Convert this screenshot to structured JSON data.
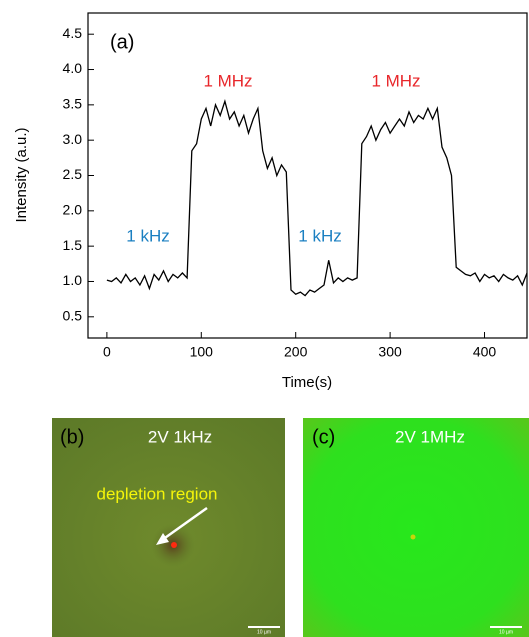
{
  "chart_data": {
    "type": "line",
    "y_label": "Intensity (a.u.)",
    "x_label": "Time(s)",
    "x": [
      0,
      5,
      10,
      15,
      20,
      25,
      30,
      35,
      40,
      45,
      50,
      55,
      60,
      65,
      70,
      75,
      80,
      85,
      90,
      95,
      100,
      105,
      110,
      115,
      120,
      125,
      130,
      135,
      140,
      145,
      150,
      155,
      160,
      165,
      170,
      175,
      180,
      185,
      190,
      195,
      200,
      205,
      210,
      215,
      220,
      225,
      230,
      235,
      240,
      245,
      250,
      255,
      260,
      265,
      270,
      275,
      280,
      285,
      290,
      295,
      300,
      305,
      310,
      315,
      320,
      325,
      330,
      335,
      340,
      345,
      350,
      355,
      360,
      365,
      370,
      375,
      380,
      385,
      390,
      395,
      400,
      405,
      410,
      415,
      420,
      425,
      430,
      435,
      440,
      445
    ],
    "series": [
      {
        "color": "#000000",
        "values": [
          1.02,
          1.0,
          1.05,
          0.98,
          1.1,
          1.0,
          1.05,
          0.95,
          1.08,
          0.9,
          1.1,
          1.02,
          1.15,
          1.0,
          1.1,
          1.05,
          1.12,
          1.05,
          2.85,
          2.95,
          3.3,
          3.45,
          3.2,
          3.5,
          3.35,
          3.55,
          3.3,
          3.4,
          3.2,
          3.35,
          3.1,
          3.3,
          3.45,
          2.85,
          2.6,
          2.75,
          2.5,
          2.65,
          2.55,
          0.88,
          0.82,
          0.85,
          0.8,
          0.88,
          0.85,
          0.9,
          0.95,
          1.3,
          0.98,
          1.05,
          1.0,
          1.05,
          1.02,
          1.05,
          2.95,
          3.05,
          3.2,
          3.0,
          3.15,
          3.25,
          3.1,
          3.2,
          3.3,
          3.2,
          3.4,
          3.25,
          3.35,
          3.3,
          3.45,
          3.3,
          3.45,
          2.9,
          2.75,
          2.5,
          1.2,
          1.15,
          1.1,
          1.08,
          1.12,
          1.0,
          1.1,
          1.05,
          1.08,
          1.0,
          1.1,
          1.05,
          1.02,
          1.08,
          0.95,
          1.12
        ]
      }
    ],
    "xlim": [
      -20,
      445
    ],
    "ylim": [
      0.2,
      4.8
    ],
    "xticks": [
      0,
      100,
      200,
      300,
      400
    ],
    "yticks": [
      0.5,
      {
        "value": 1,
        "label": "1.0"
      },
      1.5,
      {
        "value": 2,
        "label": "2.0"
      },
      2.5,
      {
        "value": 3,
        "label": "3.0"
      },
      3.5,
      {
        "value": 4,
        "label": "4.0"
      },
      4.5
    ],
    "grid": false,
    "annotations": [
      {
        "text": "(a)",
        "color": "#000000"
      },
      {
        "text": "1 MHz",
        "color": "#e8262a"
      },
      {
        "text": "1 MHz",
        "color": "#e8262a"
      },
      {
        "text": "1 kHz",
        "color": "#1a7fc1"
      },
      {
        "text": "1 kHz",
        "color": "#1a7fc1"
      }
    ]
  },
  "images": [
    {
      "label": "(b)",
      "caption": "2V 1kHz",
      "annotation": "depletion region",
      "scale_bar": "10 µm"
    },
    {
      "label": "(c)",
      "caption": "2V 1MHz",
      "scale_bar": "10 µm"
    }
  ]
}
